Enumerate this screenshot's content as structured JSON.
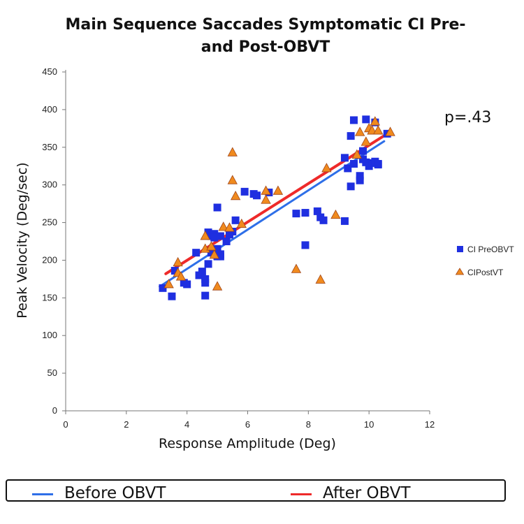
{
  "chart_data": {
    "type": "scatter",
    "title_lines": [
      "Main Sequence Saccades Symptomatic CI Pre-",
      "and Post-OBVT"
    ],
    "xlabel": "Response Amplitude (Deg)",
    "ylabel": "Peak Velocity (Deg/sec)",
    "xlim": [
      0,
      12
    ],
    "ylim": [
      0,
      450
    ],
    "xticks": [
      0,
      2,
      4,
      6,
      8,
      10,
      12
    ],
    "yticks": [
      0,
      50,
      100,
      150,
      200,
      250,
      300,
      350,
      400,
      450
    ],
    "grid": false,
    "legend_position": "right",
    "annotation": "p=.43",
    "series": [
      {
        "name": "CI PreOBVT",
        "marker": "square",
        "color": "#1f2fe0",
        "points": [
          [
            3.2,
            163
          ],
          [
            3.5,
            152
          ],
          [
            3.6,
            186
          ],
          [
            3.9,
            170
          ],
          [
            4.0,
            168
          ],
          [
            4.3,
            210
          ],
          [
            4.4,
            180
          ],
          [
            4.5,
            185
          ],
          [
            4.6,
            153
          ],
          [
            4.6,
            175
          ],
          [
            4.6,
            170
          ],
          [
            4.7,
            195
          ],
          [
            4.7,
            237
          ],
          [
            4.8,
            232
          ],
          [
            4.8,
            210
          ],
          [
            4.9,
            235
          ],
          [
            4.9,
            230
          ],
          [
            5.0,
            270
          ],
          [
            5.0,
            215
          ],
          [
            5.0,
            205
          ],
          [
            5.1,
            208
          ],
          [
            5.1,
            205
          ],
          [
            5.1,
            232
          ],
          [
            5.3,
            225
          ],
          [
            5.4,
            234
          ],
          [
            5.5,
            238
          ],
          [
            5.6,
            253
          ],
          [
            5.9,
            291
          ],
          [
            6.2,
            288
          ],
          [
            6.3,
            286
          ],
          [
            6.7,
            290
          ],
          [
            7.6,
            262
          ],
          [
            7.9,
            263
          ],
          [
            7.9,
            220
          ],
          [
            8.3,
            265
          ],
          [
            8.4,
            257
          ],
          [
            8.5,
            253
          ],
          [
            9.2,
            252
          ],
          [
            9.2,
            336
          ],
          [
            9.3,
            322
          ],
          [
            9.4,
            298
          ],
          [
            9.4,
            365
          ],
          [
            9.5,
            386
          ],
          [
            9.5,
            328
          ],
          [
            9.7,
            306
          ],
          [
            9.7,
            312
          ],
          [
            9.8,
            345
          ],
          [
            9.8,
            334
          ],
          [
            9.9,
            387
          ],
          [
            9.9,
            330
          ],
          [
            10.0,
            325
          ],
          [
            10.1,
            329
          ],
          [
            10.2,
            331
          ],
          [
            10.2,
            383
          ],
          [
            10.3,
            328
          ],
          [
            10.3,
            327
          ],
          [
            10.6,
            368
          ]
        ]
      },
      {
        "name": "CIPostVT",
        "marker": "triangle",
        "color": "#f08a1e",
        "points": [
          [
            3.4,
            168
          ],
          [
            3.7,
            183
          ],
          [
            3.7,
            197
          ],
          [
            3.8,
            178
          ],
          [
            4.6,
            232
          ],
          [
            4.6,
            215
          ],
          [
            4.8,
            218
          ],
          [
            4.9,
            207
          ],
          [
            5.0,
            165
          ],
          [
            5.2,
            244
          ],
          [
            5.4,
            243
          ],
          [
            5.5,
            343
          ],
          [
            5.5,
            306
          ],
          [
            5.6,
            285
          ],
          [
            5.8,
            248
          ],
          [
            6.6,
            280
          ],
          [
            6.6,
            292
          ],
          [
            7.0,
            292
          ],
          [
            7.6,
            188
          ],
          [
            8.4,
            174
          ],
          [
            8.6,
            322
          ],
          [
            8.9,
            260
          ],
          [
            9.6,
            340
          ],
          [
            9.7,
            370
          ],
          [
            9.9,
            357
          ],
          [
            10.0,
            375
          ],
          [
            10.1,
            372
          ],
          [
            10.2,
            384
          ],
          [
            10.3,
            372
          ],
          [
            10.7,
            370
          ]
        ]
      }
    ],
    "trendlines": [
      {
        "name": "Before OBVT",
        "color": "#2e6fe8",
        "x": [
          3.1,
          10.5
        ],
        "y": [
          165,
          358
        ]
      },
      {
        "name": "After OBVT",
        "color": "#ee2a2a",
        "x": [
          3.3,
          10.6
        ],
        "y": [
          182,
          368
        ]
      }
    ]
  },
  "bottom_legend": {
    "before_label": "Before OBVT",
    "after_label": "After OBVT",
    "before_color": "#2e6fe8",
    "after_color": "#ee2a2a"
  }
}
